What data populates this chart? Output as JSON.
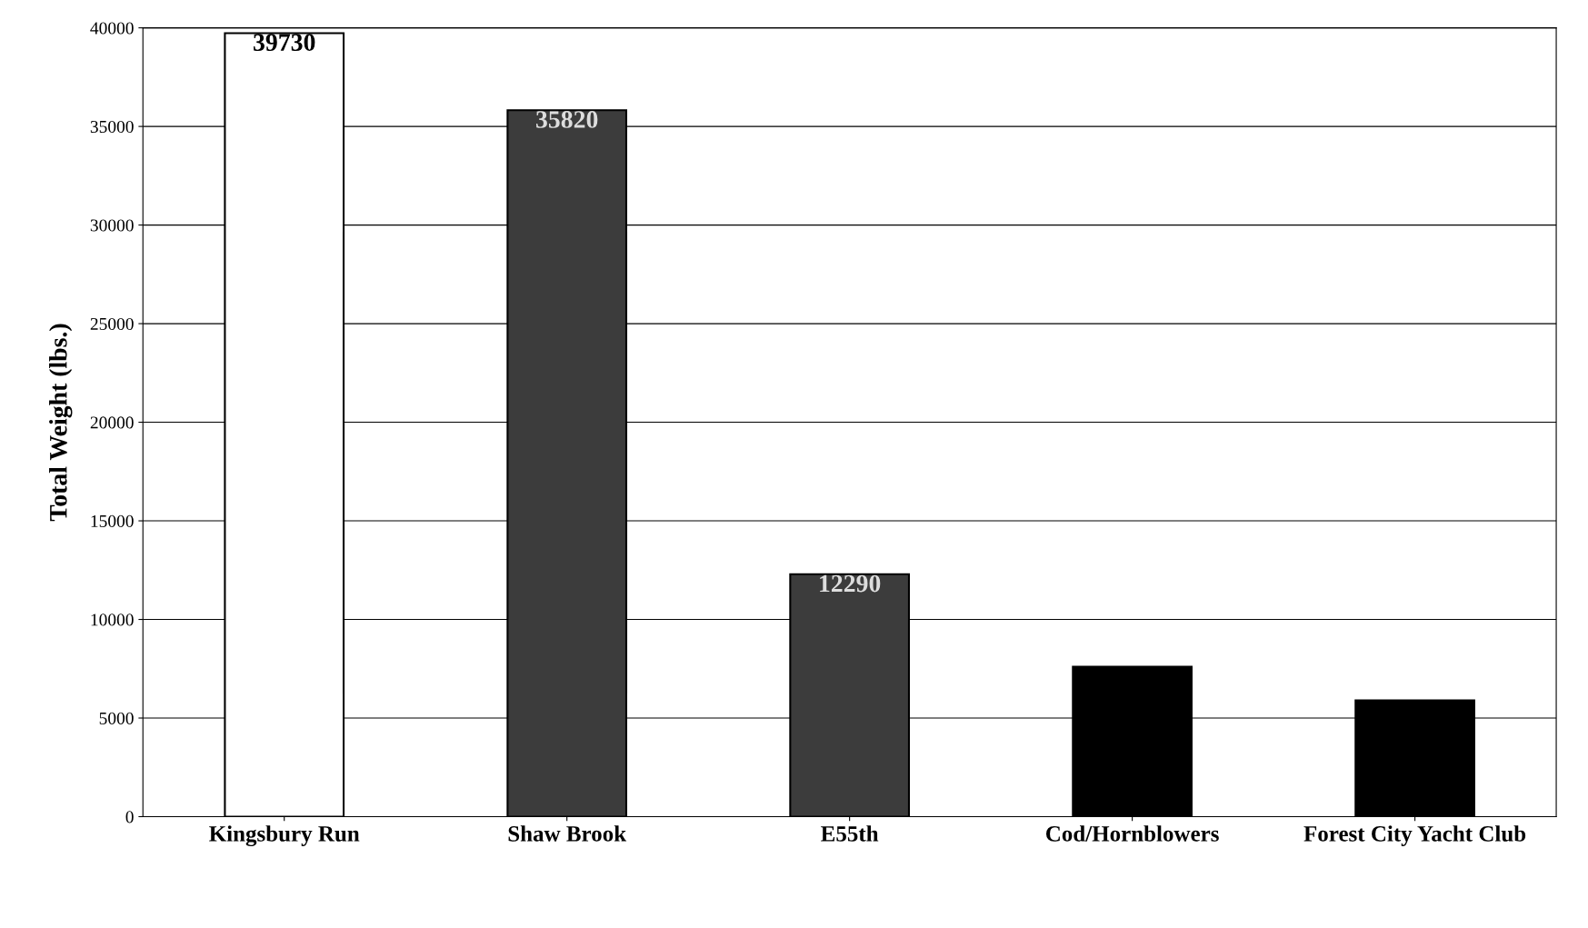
{
  "chart_data": {
    "type": "bar",
    "ylabel": "Total Weight (lbs.)",
    "categories": [
      "Kingsbury Run",
      "Shaw Brook",
      "E55th",
      "Cod/Hornblowers",
      "Forest City Yacht Club"
    ],
    "values": [
      39730,
      35820,
      12290,
      7600,
      5900
    ],
    "colors": [
      "#ffffff",
      "#3c3c3c",
      "#3c3c3c",
      "#000000",
      "#000000"
    ],
    "value_labels": [
      "39730",
      "35820",
      "12290",
      null,
      null
    ],
    "ylim": [
      0,
      40000
    ],
    "yticks": [
      0,
      5000,
      10000,
      15000,
      20000,
      25000,
      30000,
      35000,
      40000
    ],
    "grid": "y",
    "legend": false
  }
}
